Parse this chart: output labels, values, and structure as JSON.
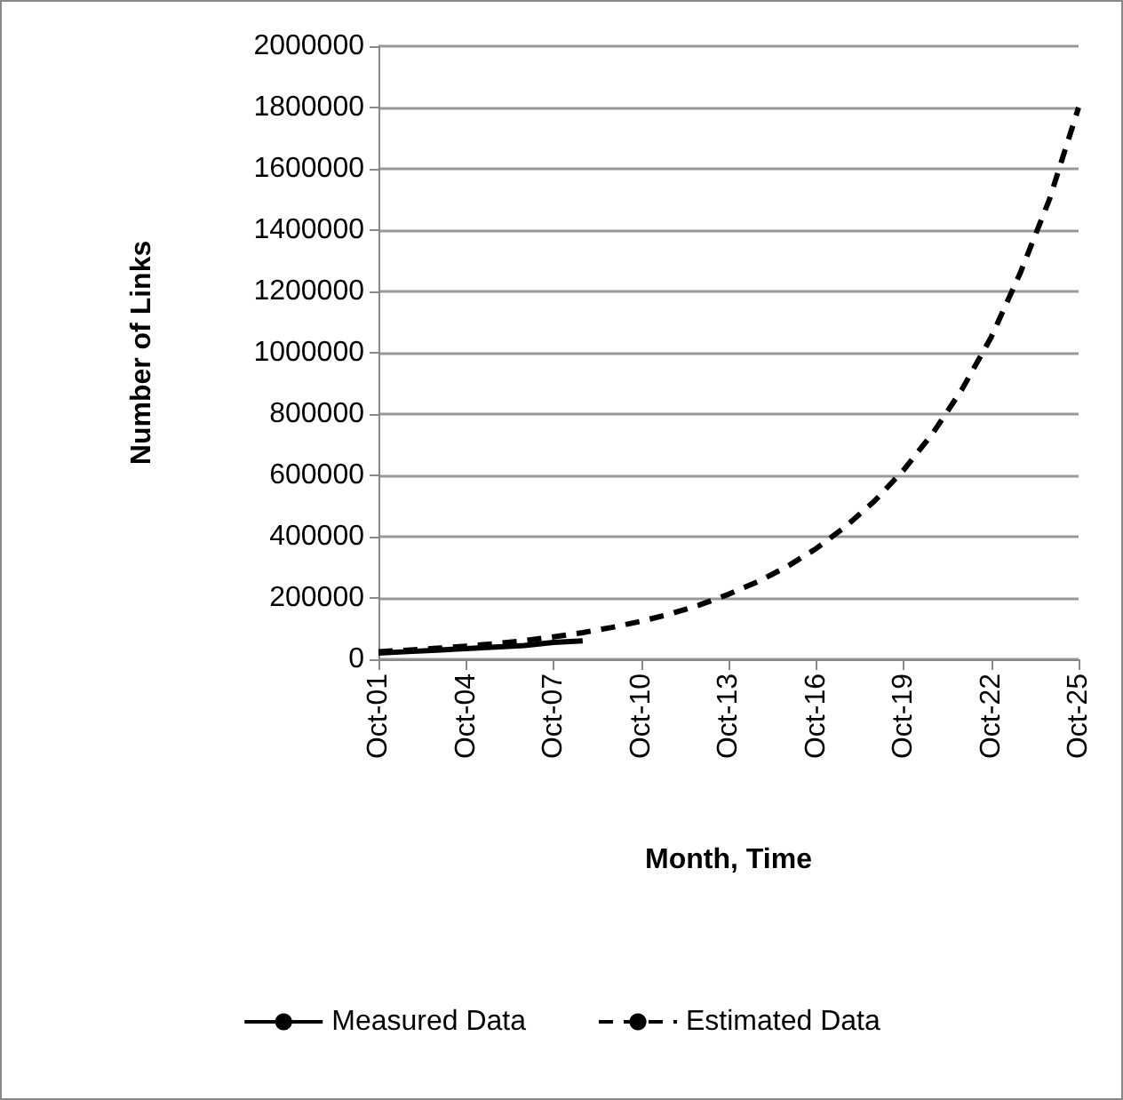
{
  "chart_data": {
    "type": "line",
    "xlabel": "Month, Time",
    "ylabel": "Number of Links",
    "categories": [
      "Oct-01",
      null,
      null,
      "Oct-04",
      null,
      null,
      "Oct-07",
      null,
      null,
      "Oct-10",
      null,
      null,
      "Oct-13",
      null,
      null,
      "Oct-16",
      null,
      null,
      "Oct-19",
      null,
      null,
      "Oct-22",
      null,
      null,
      "Oct-25"
    ],
    "series": [
      {
        "name": "Measured Data",
        "color": "#000000",
        "line_style": "solid",
        "values": [
          20000,
          25000,
          30000,
          35000,
          40000,
          45000,
          55000,
          60000,
          null,
          null,
          null,
          null,
          null,
          null,
          null,
          null,
          null,
          null,
          null,
          null,
          null,
          null,
          null,
          null,
          null
        ]
      },
      {
        "name": "Estimated Data",
        "color": "#000000",
        "line_style": "dashed",
        "values": [
          25000,
          30000,
          36000,
          43000,
          51000,
          61000,
          73000,
          87000,
          104000,
          124000,
          148000,
          177000,
          212000,
          253000,
          302000,
          361000,
          432000,
          516000,
          617000,
          737000,
          880000,
          1050000,
          1260000,
          1500000,
          1800000
        ]
      }
    ],
    "ylim": [
      0,
      2000000
    ],
    "yticks": [
      0,
      200000,
      400000,
      600000,
      800000,
      1000000,
      1200000,
      1400000,
      1600000,
      1800000,
      2000000
    ],
    "grid": "y",
    "legend": "bottom",
    "marker": "none"
  }
}
